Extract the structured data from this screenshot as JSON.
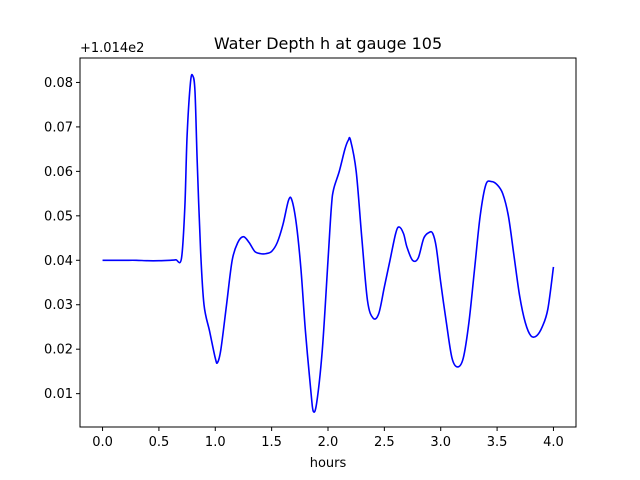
{
  "chart_data": {
    "type": "line",
    "title": "Water Depth h at gauge 105",
    "xlabel": "hours",
    "ylabel": "",
    "y_offset_label": "+1.014e2",
    "xlim": [
      -0.2,
      4.2
    ],
    "ylim": [
      0.0025,
      0.0855
    ],
    "x_ticks": [
      0.0,
      0.5,
      1.0,
      1.5,
      2.0,
      2.5,
      3.0,
      3.5,
      4.0
    ],
    "x_tick_labels": [
      "0.0",
      "0.5",
      "1.0",
      "1.5",
      "2.0",
      "2.5",
      "3.0",
      "3.5",
      "4.0"
    ],
    "y_ticks": [
      0.01,
      0.02,
      0.03,
      0.04,
      0.05,
      0.06,
      0.07,
      0.08
    ],
    "y_tick_labels": [
      "0.01",
      "0.02",
      "0.03",
      "0.04",
      "0.05",
      "0.06",
      "0.07",
      "0.08"
    ],
    "grid": false,
    "legend": "none",
    "series": [
      {
        "color": "#0000ff",
        "x": [
          0.0,
          0.1,
          0.2,
          0.3,
          0.4,
          0.5,
          0.6,
          0.65,
          0.7,
          0.73,
          0.75,
          0.78,
          0.8,
          0.82,
          0.84,
          0.87,
          0.9,
          0.95,
          1.0,
          1.02,
          1.05,
          1.1,
          1.15,
          1.2,
          1.25,
          1.3,
          1.35,
          1.4,
          1.45,
          1.5,
          1.55,
          1.6,
          1.65,
          1.68,
          1.72,
          1.76,
          1.8,
          1.85,
          1.87,
          1.9,
          1.95,
          2.0,
          2.03,
          2.05,
          2.1,
          2.15,
          2.18,
          2.2,
          2.25,
          2.3,
          2.35,
          2.4,
          2.45,
          2.5,
          2.55,
          2.6,
          2.63,
          2.67,
          2.7,
          2.75,
          2.8,
          2.85,
          2.9,
          2.93,
          2.96,
          3.0,
          3.05,
          3.1,
          3.15,
          3.2,
          3.25,
          3.3,
          3.35,
          3.4,
          3.45,
          3.5,
          3.55,
          3.6,
          3.65,
          3.7,
          3.75,
          3.8,
          3.85,
          3.9,
          3.95,
          4.0
        ],
        "y": [
          0.04,
          0.04,
          0.04,
          0.04,
          0.0399,
          0.0399,
          0.04,
          0.0401,
          0.0404,
          0.052,
          0.068,
          0.08,
          0.0815,
          0.078,
          0.062,
          0.042,
          0.03,
          0.024,
          0.018,
          0.017,
          0.02,
          0.03,
          0.04,
          0.044,
          0.0453,
          0.044,
          0.042,
          0.0415,
          0.0415,
          0.042,
          0.044,
          0.048,
          0.0535,
          0.0535,
          0.048,
          0.038,
          0.024,
          0.01,
          0.006,
          0.008,
          0.02,
          0.04,
          0.052,
          0.056,
          0.06,
          0.065,
          0.067,
          0.067,
          0.06,
          0.045,
          0.031,
          0.027,
          0.028,
          0.034,
          0.04,
          0.046,
          0.0475,
          0.046,
          0.043,
          0.04,
          0.0405,
          0.045,
          0.0463,
          0.046,
          0.043,
          0.035,
          0.026,
          0.018,
          0.016,
          0.018,
          0.026,
          0.038,
          0.05,
          0.057,
          0.0577,
          0.057,
          0.055,
          0.05,
          0.041,
          0.032,
          0.026,
          0.023,
          0.023,
          0.025,
          0.029,
          0.0385
        ]
      }
    ]
  }
}
